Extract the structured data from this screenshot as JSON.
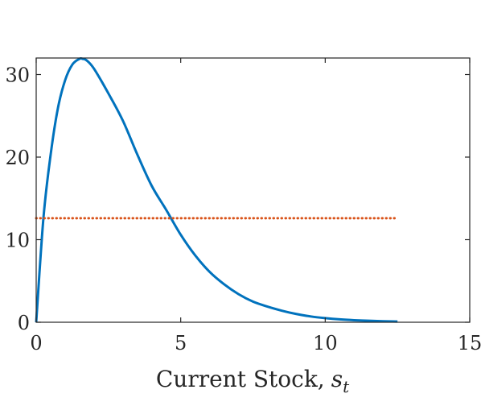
{
  "chart_data": {
    "type": "line",
    "title": "",
    "xlabel": "Current Stock,",
    "xlabel_math_symbol": "s",
    "xlabel_math_subscript": "t",
    "ylabel": "",
    "xlim": [
      0,
      15
    ],
    "ylim": [
      0,
      32
    ],
    "xticks": [
      0,
      5,
      10,
      15
    ],
    "xtick_labels": [
      "0",
      "5",
      "10",
      "15"
    ],
    "yticks": [
      0,
      10,
      20,
      30
    ],
    "ytick_labels": [
      "0",
      "10",
      "20",
      "30"
    ],
    "grid": false,
    "legend": "none",
    "series": [
      {
        "color": "#0072bd",
        "style": "solid",
        "x": [
          0,
          0.25,
          0.5,
          0.75,
          1.0,
          1.25,
          1.5,
          1.6,
          1.75,
          2.0,
          2.5,
          3.0,
          3.5,
          4.0,
          4.5,
          5.0,
          5.5,
          6.0,
          6.5,
          7.0,
          7.5,
          8.0,
          8.5,
          9.0,
          9.5,
          10.0,
          10.5,
          11.0,
          11.5,
          12.0,
          12.5
        ],
        "y": [
          0,
          12.6,
          20.3,
          25.9,
          29.3,
          31.2,
          31.9,
          31.9,
          31.7,
          30.7,
          27.7,
          24.4,
          20.3,
          16.5,
          13.6,
          10.6,
          8.1,
          6.1,
          4.6,
          3.4,
          2.5,
          1.9,
          1.4,
          1.0,
          0.7,
          0.5,
          0.35,
          0.25,
          0.18,
          0.12,
          0.08
        ]
      },
      {
        "color": "#d95319",
        "style": "dotted",
        "x": [
          0,
          12.5
        ],
        "y": [
          12.6,
          12.6
        ]
      }
    ]
  }
}
